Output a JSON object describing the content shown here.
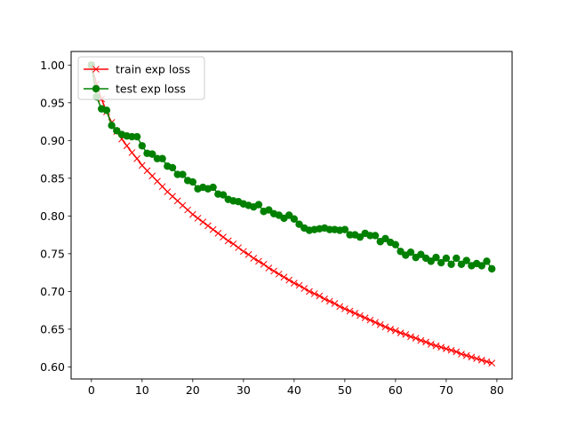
{
  "chart_data": {
    "type": "line",
    "xlim": [
      -4,
      83
    ],
    "ylim": [
      0.584,
      1.018
    ],
    "x_ticks": [
      0,
      10,
      20,
      30,
      40,
      50,
      60,
      70,
      80
    ],
    "y_ticks": [
      0.6,
      0.65,
      0.7,
      0.75,
      0.8,
      0.85,
      0.9,
      0.95,
      1.0
    ],
    "x_tick_labels": [
      "0",
      "10",
      "20",
      "30",
      "40",
      "50",
      "60",
      "70",
      "80"
    ],
    "y_tick_labels": [
      "0.60",
      "0.65",
      "0.70",
      "0.75",
      "0.80",
      "0.85",
      "0.90",
      "0.95",
      "1.00"
    ],
    "grid": false,
    "legend_position": "top-left",
    "series": [
      {
        "name": "train exp loss",
        "color": "#ff0000",
        "marker": "x",
        "x": [
          0,
          1,
          2,
          3,
          4,
          5,
          6,
          7,
          8,
          9,
          10,
          11,
          12,
          13,
          14,
          15,
          16,
          17,
          18,
          19,
          20,
          21,
          22,
          23,
          24,
          25,
          26,
          27,
          28,
          29,
          30,
          31,
          32,
          33,
          34,
          35,
          36,
          37,
          38,
          39,
          40,
          41,
          42,
          43,
          44,
          45,
          46,
          47,
          48,
          49,
          50,
          51,
          52,
          53,
          54,
          55,
          56,
          57,
          58,
          59,
          60,
          61,
          62,
          63,
          64,
          65,
          66,
          67,
          68,
          69,
          70,
          71,
          72,
          73,
          74,
          75,
          76,
          77,
          78,
          79
        ],
        "values": [
          1.0,
          0.975,
          0.955,
          0.938,
          0.924,
          0.912,
          0.902,
          0.893,
          0.884,
          0.876,
          0.867,
          0.86,
          0.853,
          0.846,
          0.839,
          0.832,
          0.826,
          0.82,
          0.814,
          0.808,
          0.802,
          0.797,
          0.792,
          0.787,
          0.782,
          0.777,
          0.772,
          0.767,
          0.763,
          0.758,
          0.753,
          0.749,
          0.744,
          0.74,
          0.736,
          0.731,
          0.727,
          0.723,
          0.719,
          0.715,
          0.711,
          0.708,
          0.704,
          0.7,
          0.697,
          0.694,
          0.69,
          0.687,
          0.684,
          0.68,
          0.677,
          0.674,
          0.671,
          0.668,
          0.665,
          0.662,
          0.659,
          0.656,
          0.653,
          0.65,
          0.648,
          0.645,
          0.643,
          0.64,
          0.638,
          0.635,
          0.633,
          0.63,
          0.628,
          0.626,
          0.624,
          0.622,
          0.62,
          0.617,
          0.615,
          0.613,
          0.611,
          0.609,
          0.607,
          0.605
        ]
      },
      {
        "name": "test exp loss",
        "color": "#008000",
        "marker": "o",
        "x": [
          0,
          1,
          2,
          3,
          4,
          5,
          6,
          7,
          8,
          9,
          10,
          11,
          12,
          13,
          14,
          15,
          16,
          17,
          18,
          19,
          20,
          21,
          22,
          23,
          24,
          25,
          26,
          27,
          28,
          29,
          30,
          31,
          32,
          33,
          34,
          35,
          36,
          37,
          38,
          39,
          40,
          41,
          42,
          43,
          44,
          45,
          46,
          47,
          48,
          49,
          50,
          51,
          52,
          53,
          54,
          55,
          56,
          57,
          58,
          59,
          60,
          61,
          62,
          63,
          64,
          65,
          66,
          67,
          68,
          69,
          70,
          71,
          72,
          73,
          74,
          75,
          76,
          77,
          78,
          79
        ],
        "values": [
          1.0,
          0.958,
          0.942,
          0.94,
          0.92,
          0.913,
          0.908,
          0.906,
          0.905,
          0.905,
          0.893,
          0.883,
          0.882,
          0.876,
          0.876,
          0.866,
          0.864,
          0.855,
          0.855,
          0.847,
          0.845,
          0.836,
          0.838,
          0.836,
          0.838,
          0.829,
          0.828,
          0.822,
          0.82,
          0.819,
          0.816,
          0.814,
          0.812,
          0.815,
          0.806,
          0.808,
          0.803,
          0.801,
          0.797,
          0.801,
          0.796,
          0.789,
          0.784,
          0.781,
          0.782,
          0.783,
          0.784,
          0.782,
          0.782,
          0.781,
          0.782,
          0.775,
          0.775,
          0.772,
          0.777,
          0.774,
          0.774,
          0.766,
          0.77,
          0.765,
          0.762,
          0.753,
          0.748,
          0.752,
          0.745,
          0.749,
          0.744,
          0.74,
          0.745,
          0.738,
          0.744,
          0.736,
          0.744,
          0.736,
          0.741,
          0.734,
          0.737,
          0.734,
          0.74,
          0.73
        ]
      }
    ]
  }
}
